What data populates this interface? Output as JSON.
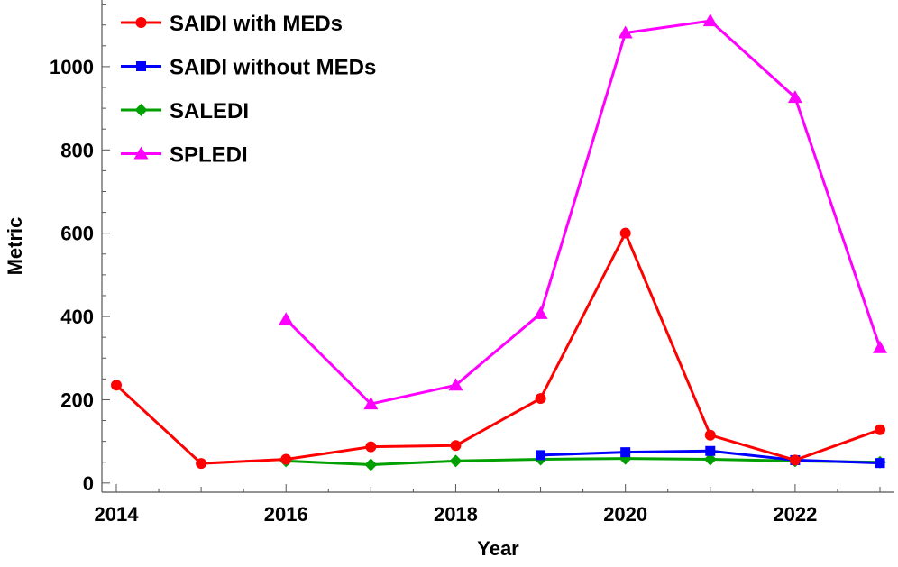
{
  "chart_data": {
    "type": "line",
    "xlabel": "Year",
    "ylabel": "Metric",
    "xlim": [
      2013.83,
      2023.17
    ],
    "ylim": [
      -22,
      1160
    ],
    "x_ticks": [
      2014,
      2016,
      2018,
      2020,
      2022
    ],
    "y_ticks": [
      0,
      200,
      400,
      600,
      800,
      1000
    ],
    "grid": false,
    "legend_position": "top-left",
    "series": [
      {
        "name": "SAIDI with MEDs",
        "color": "#ff0000",
        "marker": "circle",
        "x": [
          2014,
          2015,
          2016,
          2017,
          2018,
          2019,
          2020,
          2021,
          2022,
          2023
        ],
        "values": [
          235,
          47,
          57,
          87,
          90,
          203,
          600,
          115,
          55,
          128
        ]
      },
      {
        "name": "SAIDI without MEDs",
        "color": "#0000ff",
        "marker": "square",
        "x": [
          2019,
          2020,
          2021,
          2022,
          2023
        ],
        "values": [
          67,
          74,
          77,
          55,
          48
        ]
      },
      {
        "name": "SALEDI",
        "color": "#00a000",
        "marker": "diamond",
        "x": [
          2016,
          2017,
          2018,
          2019,
          2020,
          2021,
          2022,
          2023
        ],
        "values": [
          53,
          44,
          53,
          57,
          59,
          57,
          53,
          50
        ]
      },
      {
        "name": "SPLEDI",
        "color": "#ff00ff",
        "marker": "triangle",
        "x": [
          2016,
          2017,
          2018,
          2019,
          2020,
          2021,
          2022,
          2023
        ],
        "values": [
          393,
          190,
          235,
          407,
          1081,
          1110,
          926,
          325
        ]
      }
    ]
  }
}
